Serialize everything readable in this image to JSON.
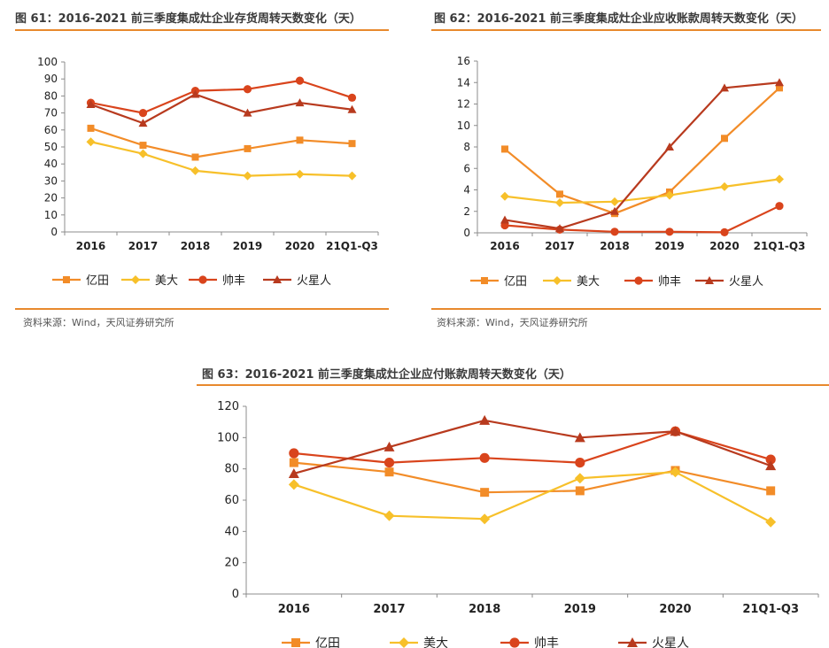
{
  "colors": {
    "yitian": "#f28c28",
    "meida": "#f7c02a",
    "shuaifeng": "#d9441c",
    "huoxingren": "#b83a1e",
    "rule": "#e8892d"
  },
  "figures": [
    {
      "id": "fig61",
      "title": "图 61：2016-2021 前三季度集成灶企业存货周转天数变化（天）",
      "source": "资料来源：Wind，天风证券研究所"
    },
    {
      "id": "fig62",
      "title": "图 62：2016-2021 前三季度集成灶企业应收账款周转天数变化（天）",
      "source": "资料来源：Wind，天风证券研究所"
    },
    {
      "id": "fig63",
      "title": "图 63：2016-2021 前三季度集成灶企业应付账款周转天数变化（天）",
      "source": ""
    }
  ],
  "chart_data": [
    {
      "type": "line",
      "title": "图 61：2016-2021 前三季度集成灶企业存货周转天数变化（天）",
      "categories": [
        "2016",
        "2017",
        "2018",
        "2019",
        "2020",
        "21Q1-Q3"
      ],
      "ylim": [
        0,
        100
      ],
      "yticks": [
        0,
        10,
        20,
        30,
        40,
        50,
        60,
        70,
        80,
        90,
        100
      ],
      "series": [
        {
          "name": "亿田",
          "key": "yitian",
          "marker": "square",
          "values": [
            61,
            51,
            44,
            49,
            54,
            52
          ]
        },
        {
          "name": "美大",
          "key": "meida",
          "marker": "diamond",
          "values": [
            53,
            46,
            36,
            33,
            34,
            33
          ]
        },
        {
          "name": "帅丰",
          "key": "shuaifeng",
          "marker": "circle",
          "values": [
            76,
            70,
            83,
            84,
            89,
            79
          ]
        },
        {
          "name": "火星人",
          "key": "huoxingren",
          "marker": "triangle",
          "values": [
            75,
            64,
            81,
            70,
            76,
            72
          ]
        }
      ]
    },
    {
      "type": "line",
      "title": "图 62：2016-2021 前三季度集成灶企业应收账款周转天数变化（天）",
      "categories": [
        "2016",
        "2017",
        "2018",
        "2019",
        "2020",
        "21Q1-Q3"
      ],
      "ylim": [
        0,
        16
      ],
      "yticks": [
        0,
        2,
        4,
        6,
        8,
        10,
        12,
        14,
        16
      ],
      "series": [
        {
          "name": "亿田",
          "key": "yitian",
          "marker": "square",
          "values": [
            7.8,
            3.6,
            1.8,
            3.8,
            8.8,
            13.5
          ]
        },
        {
          "name": "美大",
          "key": "meida",
          "marker": "diamond",
          "values": [
            3.4,
            2.8,
            2.9,
            3.5,
            4.3,
            5.0
          ]
        },
        {
          "name": "帅丰",
          "key": "shuaifeng",
          "marker": "circle",
          "values": [
            0.7,
            0.3,
            0.1,
            0.1,
            0.05,
            2.5
          ]
        },
        {
          "name": "火星人",
          "key": "huoxingren",
          "marker": "triangle",
          "values": [
            1.2,
            0.4,
            2.0,
            8.0,
            13.5,
            14.0
          ]
        }
      ]
    },
    {
      "type": "line",
      "title": "图 63：2016-2021 前三季度集成灶企业应付账款周转天数变化（天）",
      "categories": [
        "2016",
        "2017",
        "2018",
        "2019",
        "2020",
        "21Q1-Q3"
      ],
      "ylim": [
        0,
        120
      ],
      "yticks": [
        0,
        20,
        40,
        60,
        80,
        100,
        120
      ],
      "series": [
        {
          "name": "亿田",
          "key": "yitian",
          "marker": "square",
          "values": [
            84,
            78,
            65,
            66,
            79,
            66
          ]
        },
        {
          "name": "美大",
          "key": "meida",
          "marker": "diamond",
          "values": [
            70,
            50,
            48,
            74,
            78,
            46
          ]
        },
        {
          "name": "帅丰",
          "key": "shuaifeng",
          "marker": "circle",
          "values": [
            90,
            84,
            87,
            84,
            104,
            86
          ]
        },
        {
          "name": "火星人",
          "key": "huoxingren",
          "marker": "triangle",
          "values": [
            77,
            94,
            111,
            100,
            104,
            82
          ]
        }
      ]
    }
  ]
}
